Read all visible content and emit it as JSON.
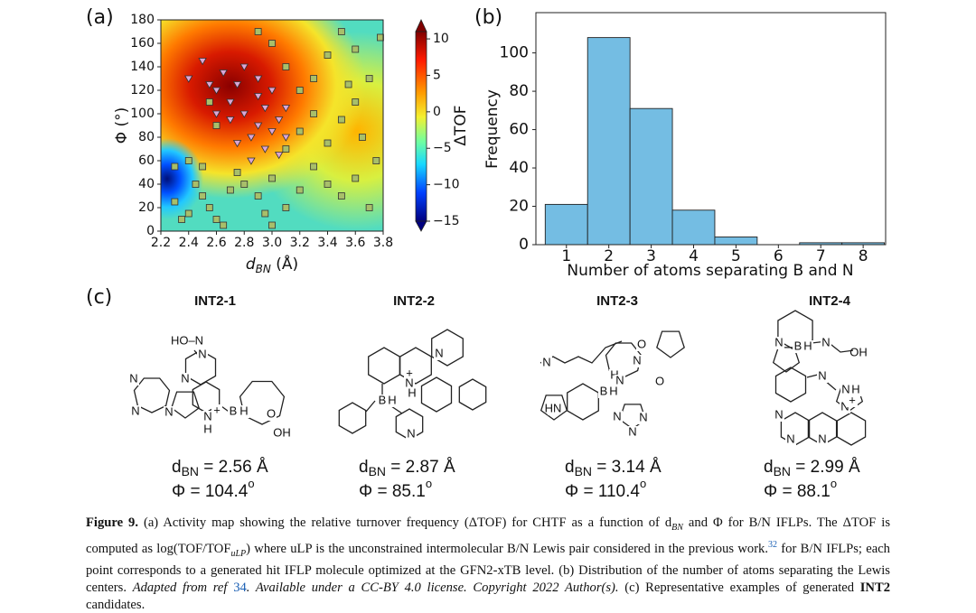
{
  "chart_data": [
    {
      "type": "scatter",
      "panel_label": "(a)",
      "xlabel": "d",
      "xlabel_subscript": "BN",
      "xlabel_rest": " (Å)",
      "ylabel": "Φ (°)",
      "xlim": [
        2.2,
        3.8
      ],
      "ylim": [
        0,
        180
      ],
      "xticks": [
        2.2,
        2.4,
        2.6,
        2.8,
        {
          "value": 3,
          "label": "3.0"
        },
        3.2,
        3.4,
        3.6,
        3.8
      ],
      "yticks": [
        0,
        20,
        40,
        60,
        80,
        100,
        120,
        140,
        160,
        180
      ],
      "colorbar": {
        "label": "ΔTOF",
        "colormap": "jet",
        "lim": [
          -15,
          11
        ],
        "ticks": [
          10,
          5,
          0,
          {
            "value": -5,
            "label": "−5"
          },
          {
            "value": -10,
            "label": "−10"
          },
          {
            "value": -15,
            "label": "−15"
          }
        ]
      },
      "series": [
        {
          "marker": "square",
          "color": "#a8bf6a",
          "x": [
            2.5,
            2.55,
            2.6,
            2.45,
            2.65,
            2.7,
            2.4,
            2.5,
            2.3,
            2.35,
            2.75,
            2.8,
            2.9,
            3.0,
            3.1,
            3.2,
            3.3,
            3.4,
            3.5,
            3.6,
            3.7,
            3.75,
            3.4,
            3.5,
            3.6,
            3.7,
            3.3,
            3.2,
            3.1,
            3.0,
            2.9,
            3.4,
            3.6,
            3.78,
            3.5,
            3.2,
            3.1,
            3.3,
            3.55,
            2.6,
            2.55,
            2.4,
            2.3,
            3.65,
            3.0,
            2.95
          ],
          "values": [
            30,
            20,
            10,
            40,
            5,
            35,
            15,
            55,
            25,
            10,
            50,
            40,
            30,
            45,
            20,
            35,
            55,
            40,
            30,
            45,
            20,
            60,
            75,
            95,
            110,
            130,
            100,
            120,
            140,
            160,
            170,
            150,
            155,
            165,
            170,
            85,
            70,
            130,
            125,
            90,
            110,
            60,
            55,
            80,
            5,
            15
          ]
        },
        {
          "marker": "triangle-down",
          "color": "#dba6d6",
          "x": [
            2.5,
            2.4,
            2.6,
            2.7,
            2.8,
            2.9,
            3.0,
            2.85,
            2.95,
            3.05,
            2.75,
            2.65,
            2.8,
            2.9,
            3.0,
            3.1,
            2.7,
            2.85,
            3.1,
            2.6,
            2.95,
            2.55,
            2.75,
            3.05,
            2.9
          ],
          "values": [
            145,
            130,
            120,
            110,
            100,
            90,
            85,
            80,
            70,
            95,
            125,
            135,
            140,
            115,
            120,
            105,
            95,
            60,
            80,
            100,
            105,
            125,
            75,
            65,
            130
          ]
        }
      ]
    },
    {
      "type": "histogram",
      "panel_label": "(b)",
      "xlabel": "Number of atoms separating B and N",
      "ylabel": "Frequency",
      "bins": [
        0.5,
        1.5,
        2.5,
        3.5,
        4.5,
        5.5,
        6.5,
        7.5,
        8.5
      ],
      "values": [
        21,
        108,
        71,
        18,
        4,
        0,
        1,
        1
      ],
      "color": "#74bde3",
      "xlim": [
        0.28,
        8.53
      ],
      "ylim": [
        0,
        121
      ],
      "xticks": [
        1,
        2,
        3,
        4,
        5,
        6,
        7,
        8
      ],
      "yticks": [
        0,
        20,
        40,
        60,
        80,
        100
      ]
    }
  ],
  "panel_c": {
    "panel_label": "(c)",
    "dbn_symbol": "d",
    "dbn_subscript": "BN",
    "phi_symbol": "Φ",
    "phi_superscript": "o",
    "molecules": [
      {
        "title": "INT2-1",
        "dbn": " = 2.56 Å",
        "phi": " = 104.4",
        "atoms": [
          {
            "text": "HO–N",
            "color": "#222"
          },
          {
            "text": "N",
            "color": "#222"
          },
          {
            "text": "N",
            "color": "#222"
          },
          {
            "text": "N",
            "color": "#222"
          },
          {
            "text": "N",
            "color": "#222"
          },
          {
            "text": "N",
            "color": "#222"
          },
          {
            "text": "N",
            "color": "#1a2fd0"
          },
          {
            "text": "+",
            "color": "#222"
          },
          {
            "text": "H",
            "color": "#666"
          },
          {
            "text": "B",
            "color": "#e02020"
          },
          {
            "text": "H",
            "color": "#222"
          },
          {
            "text": "O",
            "color": "#222"
          },
          {
            "text": "OH",
            "color": "#222"
          }
        ]
      },
      {
        "title": "INT2-2",
        "dbn": " = 2.87 Å",
        "phi": " = 85.1",
        "atoms": [
          {
            "text": "N",
            "color": "#222"
          },
          {
            "text": "+",
            "color": "#222"
          },
          {
            "text": "N",
            "color": "#1a2fd0"
          },
          {
            "text": "H",
            "color": "#1a2fd0"
          },
          {
            "text": "B",
            "color": "#e02020"
          },
          {
            "text": "H",
            "color": "#222"
          },
          {
            "text": "N",
            "color": "#222"
          }
        ]
      },
      {
        "title": "INT2-3",
        "dbn": " = 3.14 Å",
        "phi": " = 110.4",
        "atoms": [
          {
            "text": "N",
            "color": "#222"
          },
          {
            "text": "O",
            "color": "#222"
          },
          {
            "text": "N",
            "color": "#222"
          },
          {
            "text": "H",
            "color": "#666"
          },
          {
            "text": "N",
            "color": "#1a2fd0"
          },
          {
            "text": "O",
            "color": "#222"
          },
          {
            "text": "B",
            "color": "#e02020"
          },
          {
            "text": "H",
            "color": "#222"
          },
          {
            "text": "HN",
            "color": "#222"
          },
          {
            "text": "N",
            "color": "#222"
          },
          {
            "text": "N",
            "color": "#222"
          },
          {
            "text": "N",
            "color": "#222"
          }
        ]
      },
      {
        "title": "INT2-4",
        "dbn": " = 2.99 Å",
        "phi": " = 88.1",
        "atoms": [
          {
            "text": "N",
            "color": "#222"
          },
          {
            "text": "B",
            "color": "#e02020"
          },
          {
            "text": "H",
            "color": "#222"
          },
          {
            "text": "N",
            "color": "#222"
          },
          {
            "text": "OH",
            "color": "#222"
          },
          {
            "text": "N",
            "color": "#222"
          },
          {
            "text": "N",
            "color": "#1a2fd0"
          },
          {
            "text": "H",
            "color": "#1a2fd0"
          },
          {
            "text": "N",
            "color": "#222"
          },
          {
            "text": "N",
            "color": "#222"
          },
          {
            "text": "N",
            "color": "#222"
          },
          {
            "text": "N",
            "color": "#222"
          },
          {
            "text": "+",
            "color": "#222"
          }
        ]
      }
    ]
  },
  "caption": {
    "segments": [
      {
        "text": "Figure 9.",
        "style": "bold"
      },
      {
        "text": " (a) Activity map showing the relative turnover frequency (ΔTOF) for CHTF as a function of d",
        "style": "plain"
      },
      {
        "text": "BN",
        "style": "sub"
      },
      {
        "text": " and Φ for B/N IFLPs. The ΔTOF is computed as log(TOF/TOF",
        "style": "plain"
      },
      {
        "text": "uLP",
        "style": "sub"
      },
      {
        "text": ") where uLP is the unconstrained intermolecular B/N Lewis pair considered in the previous work.",
        "style": "plain"
      },
      {
        "text": "32",
        "style": "sup"
      },
      {
        "text": " for B/N IFLPs; each point corresponds to a generated hit IFLP molecule optimized at the GFN2-xTB level. (b) Distribution of the number of atoms separating the Lewis centers. ",
        "style": "plain"
      },
      {
        "text": "Adapted from ref ",
        "style": "italic"
      },
      {
        "text": "34",
        "style": "link"
      },
      {
        "text": ". Available under a CC-BY 4.0 license. Copyright 2022 Author(s).",
        "style": "italic"
      },
      {
        "text": " (c) Representative examples of generated ",
        "style": "plain"
      },
      {
        "text": "INT2",
        "style": "bold"
      },
      {
        "text": " candidates.",
        "style": "plain"
      }
    ]
  }
}
